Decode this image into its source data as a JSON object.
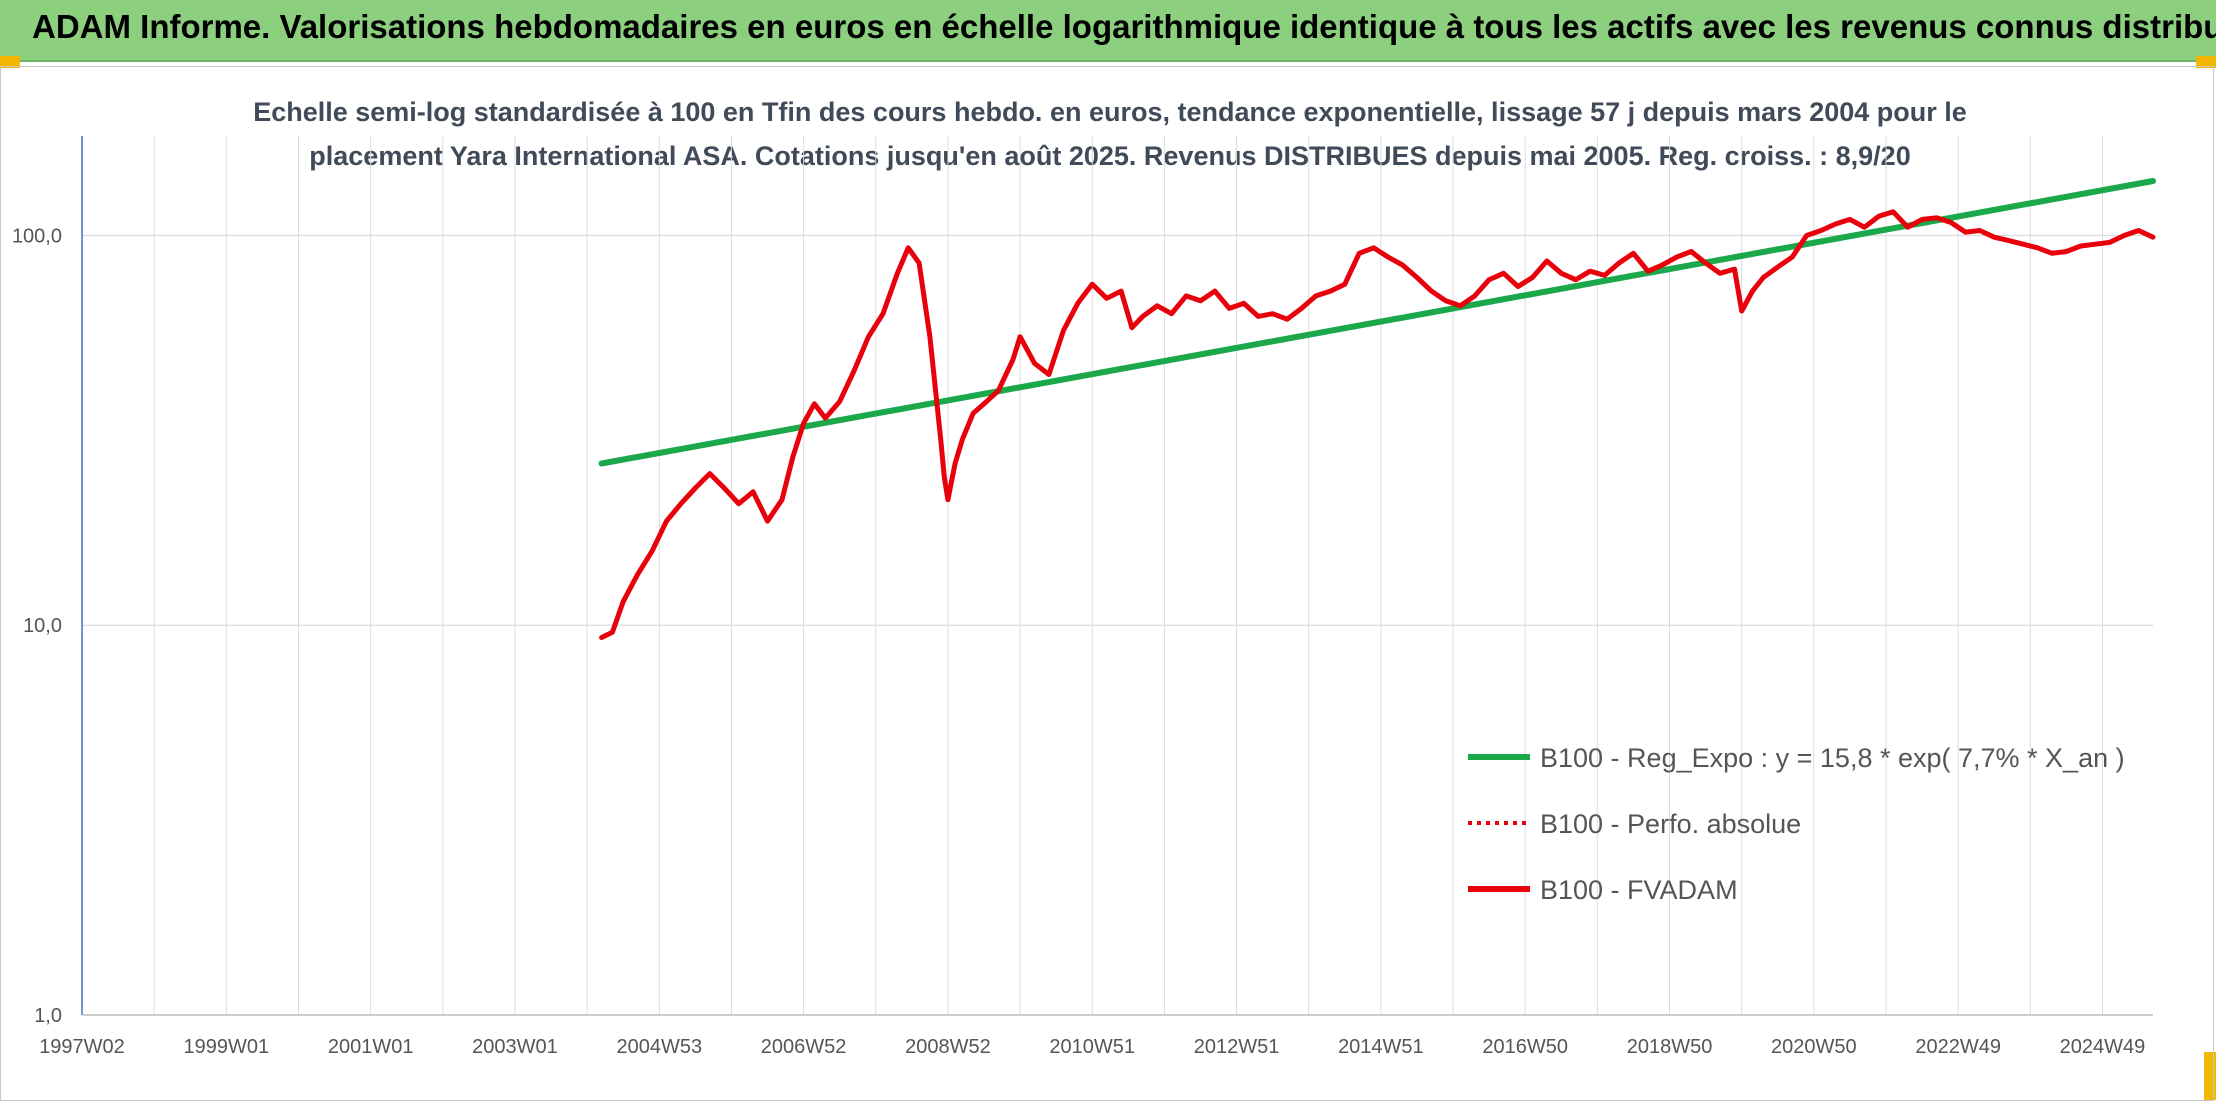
{
  "banner": {
    "title": "ADAM Informe. Valorisations hebdomadaires en euros en échelle logarithmique identique à tous les actifs avec les revenus connus distribués"
  },
  "colors": {
    "banner_bg": "#8ccf7e",
    "trend": "#1aa84a",
    "fvadam": "#e8000b",
    "perf": "#e8000b",
    "grid": "#dcdcdc",
    "axis": "#4472c4"
  },
  "chart_data": {
    "type": "line",
    "title_lines": [
      "Echelle semi-log standardisée à 100 en Tfin des cours hebdo. en euros, tendance exponentielle, lissage 57 j depuis mars 2004 pour le",
      "placement Yara International ASA. Cotations jusqu'en août 2025. Revenus DISTRIBUES depuis mai 2005. Reg. croiss. : 8,9/20"
    ],
    "y_scale": "log",
    "ylim": [
      1,
      180
    ],
    "y_ticks": [
      1,
      10,
      100
    ],
    "y_tick_labels": [
      "1,0",
      "10,0",
      "100,0"
    ],
    "xlim": [
      1997.0,
      2025.7
    ],
    "x_ticks": [
      1997.0,
      1999.0,
      2001.0,
      2003.0,
      2005.0,
      2007.0,
      2009.0,
      2011.0,
      2013.0,
      2015.0,
      2017.0,
      2019.0,
      2021.0,
      2023.0,
      2025.0
    ],
    "x_tick_labels": [
      "1997W02",
      "1999W01",
      "2001W01",
      "2003W01",
      "2004W53",
      "2006W52",
      "2008W52",
      "2010W51",
      "2012W51",
      "2014W51",
      "2016W50",
      "2018W50",
      "2020W50",
      "2022W49",
      "2024W49"
    ],
    "legend_position": "center-right",
    "series": [
      {
        "name": "B100 - Reg_Expo : y = 15,8 * exp( 7,7% *  X_an )",
        "style": "solid",
        "color": "#1aa84a",
        "x": [
          2004.2,
          2025.7
        ],
        "y": [
          26,
          138
        ]
      },
      {
        "name": "B100 - Perfo. absolue",
        "style": "dotted",
        "color": "#e8000b",
        "x": [],
        "y": []
      },
      {
        "name": "B100 - FVADAM",
        "style": "solid",
        "color": "#e8000b",
        "x": [
          2004.2,
          2004.35,
          2004.5,
          2004.7,
          2004.9,
          2005.1,
          2005.3,
          2005.5,
          2005.7,
          2005.9,
          2006.1,
          2006.3,
          2006.5,
          2006.7,
          2006.85,
          2007.0,
          2007.15,
          2007.3,
          2007.5,
          2007.7,
          2007.9,
          2008.1,
          2008.3,
          2008.45,
          2008.6,
          2008.75,
          2008.9,
          2008.95,
          2009.0,
          2009.1,
          2009.2,
          2009.35,
          2009.5,
          2009.7,
          2009.9,
          2010.0,
          2010.2,
          2010.4,
          2010.6,
          2010.8,
          2011.0,
          2011.2,
          2011.4,
          2011.55,
          2011.7,
          2011.9,
          2012.1,
          2012.3,
          2012.5,
          2012.7,
          2012.9,
          2013.1,
          2013.3,
          2013.5,
          2013.7,
          2013.9,
          2014.1,
          2014.3,
          2014.5,
          2014.7,
          2014.9,
          2015.1,
          2015.3,
          2015.5,
          2015.7,
          2015.9,
          2016.1,
          2016.3,
          2016.5,
          2016.7,
          2016.9,
          2017.1,
          2017.3,
          2017.5,
          2017.7,
          2017.9,
          2018.1,
          2018.3,
          2018.5,
          2018.7,
          2018.9,
          2019.1,
          2019.3,
          2019.5,
          2019.7,
          2019.9,
          2020.0,
          2020.15,
          2020.3,
          2020.5,
          2020.7,
          2020.9,
          2021.1,
          2021.3,
          2021.5,
          2021.7,
          2021.9,
          2022.1,
          2022.3,
          2022.5,
          2022.7,
          2022.9,
          2023.1,
          2023.3,
          2023.5,
          2023.7,
          2023.9,
          2024.1,
          2024.3,
          2024.5,
          2024.7,
          2024.9,
          2025.1,
          2025.3,
          2025.5,
          2025.7
        ],
        "y": [
          9.3,
          9.6,
          11.5,
          13.5,
          15.5,
          18.5,
          20.5,
          22.5,
          24.5,
          22.5,
          20.5,
          22,
          18.5,
          21,
          27,
          33,
          37,
          34,
          37.5,
          45,
          55,
          63,
          80,
          93,
          85,
          55,
          30,
          24,
          21,
          26,
          30,
          35,
          37,
          40,
          48,
          55,
          47,
          44,
          57,
          67,
          75,
          69,
          72,
          58,
          62,
          66,
          63,
          70,
          68,
          72,
          65,
          67,
          62,
          63,
          61,
          65,
          70,
          72,
          75,
          90,
          93,
          88,
          84,
          78,
          72,
          68,
          66,
          70,
          77,
          80,
          74,
          78,
          86,
          80,
          77,
          81,
          79,
          85,
          90,
          81,
          84,
          88,
          91,
          85,
          80,
          82,
          64,
          72,
          78,
          83,
          88,
          100,
          103,
          107,
          110,
          105,
          112,
          115,
          105,
          110,
          111,
          108,
          102,
          103,
          99,
          97,
          95,
          93,
          90,
          91,
          94,
          95,
          96,
          100,
          103,
          99
        ]
      }
    ]
  }
}
